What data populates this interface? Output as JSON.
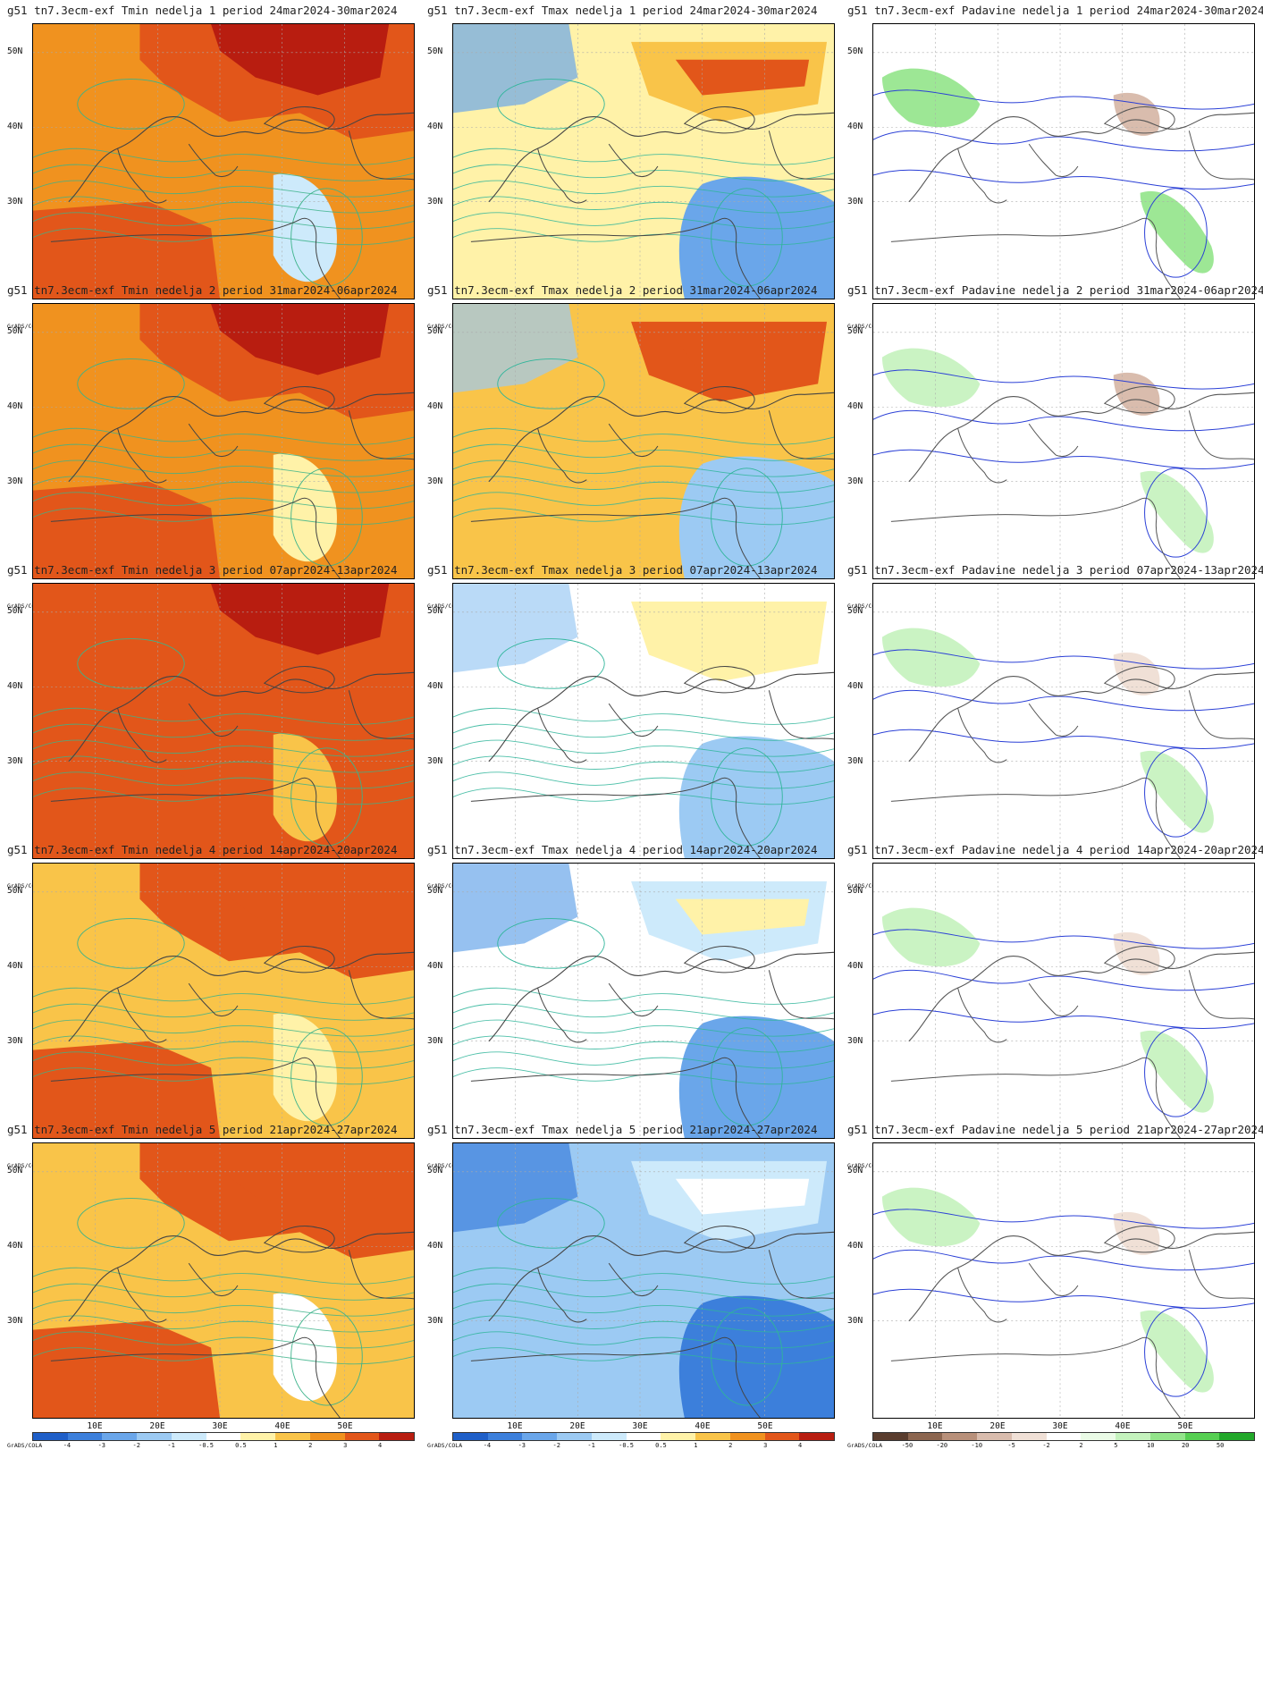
{
  "periods": [
    {
      "week": "1",
      "period": "24mar2024-30mar2024"
    },
    {
      "week": "2",
      "period": "31mar2024-06apr2024"
    },
    {
      "week": "3",
      "period": "07apr2024-13apr2024"
    },
    {
      "week": "4",
      "period": "14apr2024-20apr2024"
    },
    {
      "week": "5",
      "period": "21apr2024-27apr2024"
    }
  ],
  "columns": [
    "Tmin",
    "Tmax",
    "Padavine"
  ],
  "titles": [
    [
      "g51 tn7.3ecm-exf Tmin nedelja 1 period 24mar2024-30mar2024",
      "g51 tn7.3ecm-exf Tmax nedelja 1 period 24mar2024-30mar2024",
      "g51 tn7.3ecm-exf Padavine nedelja 1 period 24mar2024-30mar2024"
    ],
    [
      "g51 tn7.3ecm-exf Tmin nedelja 2 period 31mar2024-06apr2024",
      "g51 tn7.3ecm-exf Tmax nedelja 2 period 31mar2024-06apr2024",
      "g51 tn7.3ecm-exf Padavine nedelja 2 period 31mar2024-06apr2024"
    ],
    [
      "g51 tn7.3ecm-exf Tmin nedelja 3 period 07apr2024-13apr2024",
      "g51 tn7.3ecm-exf Tmax nedelja 3 period 07apr2024-13apr2024",
      "g51 tn7.3ecm-exf Padavine nedelja 3 period 07apr2024-13apr2024"
    ],
    [
      "g51 tn7.3ecm-exf Tmin nedelja 4 period 14apr2024-20apr2024",
      "g51 tn7.3ecm-exf Tmax nedelja 4 period 14apr2024-20apr2024",
      "g51 tn7.3ecm-exf Padavine nedelja 4 period 14apr2024-20apr2024"
    ],
    [
      "g51 tn7.3ecm-exf Tmin nedelja 5 period 21apr2024-27apr2024",
      "g51 tn7.3ecm-exf Tmax nedelja 5 period 21apr2024-27apr2024",
      "g51 tn7.3ecm-exf Padavine nedelja 5 period 21apr2024-27apr2024"
    ]
  ],
  "lat_labels": [
    "50N",
    "40N",
    "30N"
  ],
  "lon_labels": [
    "10E",
    "20E",
    "30E",
    "40E",
    "50E"
  ],
  "grads_label": "GrADS/COLA",
  "temp_legend": {
    "labels": [
      "-4",
      "-3",
      "-2",
      "-1",
      "-0.5",
      "0.5",
      "1",
      "2",
      "3",
      "4"
    ],
    "colors": [
      "#1f5fc8",
      "#3c7fdb",
      "#6aa6ea",
      "#9ccaf3",
      "#cdeafb",
      "#ffffff",
      "#fff2a8",
      "#f9c449",
      "#f0921f",
      "#e2561a",
      "#b81d10"
    ]
  },
  "precip_legend": {
    "labels": [
      "-50",
      "-20",
      "-10",
      "-5",
      "-2",
      "2",
      "5",
      "10",
      "20",
      "50"
    ],
    "colors": [
      "#5a3d2e",
      "#8c6650",
      "#b8907a",
      "#d9bcad",
      "#f0e0d6",
      "#ffffff",
      "#eafbe6",
      "#c4f2bd",
      "#92e48a",
      "#56cf52",
      "#22a82a"
    ]
  },
  "panel_fills": [
    {
      "tmin": {
        "base": "#f0921f",
        "hot": "#e2561a",
        "very_hot": "#b81d10",
        "cool": "#cdeafb"
      },
      "tmax": {
        "base": "#fff2a8",
        "warm": "#f9c449",
        "hot": "#e2561a",
        "cool": "#6aa6ea"
      },
      "pad": {
        "wet": "#92e48a",
        "dry": "#d9bcad"
      }
    },
    {
      "tmin": {
        "base": "#f0921f",
        "hot": "#e2561a",
        "very_hot": "#b81d10",
        "cool": "#fff2a8"
      },
      "tmax": {
        "base": "#f9c449",
        "warm": "#e2561a",
        "hot": "#e2561a",
        "cool": "#9ccaf3"
      },
      "pad": {
        "wet": "#c4f2bd",
        "dry": "#d9bcad"
      }
    },
    {
      "tmin": {
        "base": "#e2561a",
        "hot": "#e2561a",
        "very_hot": "#b81d10",
        "cool": "#f9c449"
      },
      "tmax": {
        "base": "#ffffff",
        "warm": "#fff2a8",
        "hot": "#fff2a8",
        "cool": "#9ccaf3"
      },
      "pad": {
        "wet": "#c4f2bd",
        "dry": "#f0e0d6"
      }
    },
    {
      "tmin": {
        "base": "#f9c449",
        "hot": "#e2561a",
        "very_hot": "#e2561a",
        "cool": "#fff2a8"
      },
      "tmax": {
        "base": "#ffffff",
        "warm": "#cdeafb",
        "hot": "#fff2a8",
        "cool": "#6aa6ea"
      },
      "pad": {
        "wet": "#c4f2bd",
        "dry": "#f0e0d6"
      }
    },
    {
      "tmin": {
        "base": "#f9c449",
        "hot": "#e2561a",
        "very_hot": "#e2561a",
        "cool": "#ffffff"
      },
      "tmax": {
        "base": "#9ccaf3",
        "warm": "#cdeafb",
        "hot": "#ffffff",
        "cool": "#3c7fdb"
      },
      "pad": {
        "wet": "#c4f2bd",
        "dry": "#f0e0d6"
      }
    }
  ]
}
